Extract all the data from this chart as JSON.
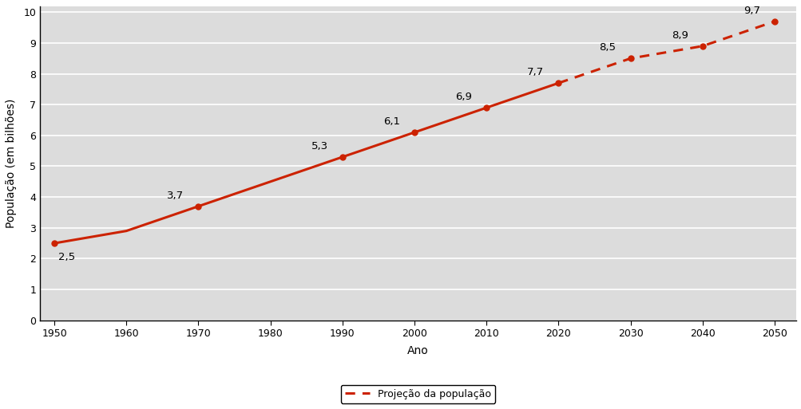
{
  "years_solid": [
    1950,
    1960,
    1965,
    1970,
    1975,
    1980,
    1985,
    1990,
    1995,
    2000,
    2005,
    2010,
    2015,
    2020
  ],
  "pop_solid": [
    2.5,
    2.9,
    3.3,
    3.7,
    4.1,
    4.5,
    4.9,
    5.3,
    5.7,
    6.1,
    6.5,
    6.9,
    7.3,
    7.7
  ],
  "years_dashed": [
    2020,
    2025,
    2030,
    2035,
    2040,
    2045,
    2050
  ],
  "pop_dashed": [
    7.7,
    8.1,
    8.5,
    8.7,
    8.9,
    9.3,
    9.7
  ],
  "annotated_years": [
    1950,
    1970,
    1990,
    2000,
    2010,
    2020,
    2030,
    2040,
    2050
  ],
  "annotated_pop": [
    2.5,
    3.7,
    5.3,
    6.1,
    6.9,
    7.7,
    8.5,
    8.9,
    9.7
  ],
  "line_color": "#CC2200",
  "xlabel": "Ano",
  "ylabel": "População (em bilhões)",
  "xlim": [
    1948,
    2053
  ],
  "ylim": [
    0,
    10.2
  ],
  "xticks": [
    1950,
    1960,
    1970,
    1980,
    1990,
    2000,
    2010,
    2020,
    2030,
    2040,
    2050
  ],
  "yticks": [
    0,
    1,
    2,
    3,
    4,
    5,
    6,
    7,
    8,
    9,
    10
  ],
  "legend_label": "Projeção da população",
  "plot_bg_color": "#DCDCDC",
  "outer_bg_color": "#FFFFFF",
  "grid_color": "#FFFFFF"
}
